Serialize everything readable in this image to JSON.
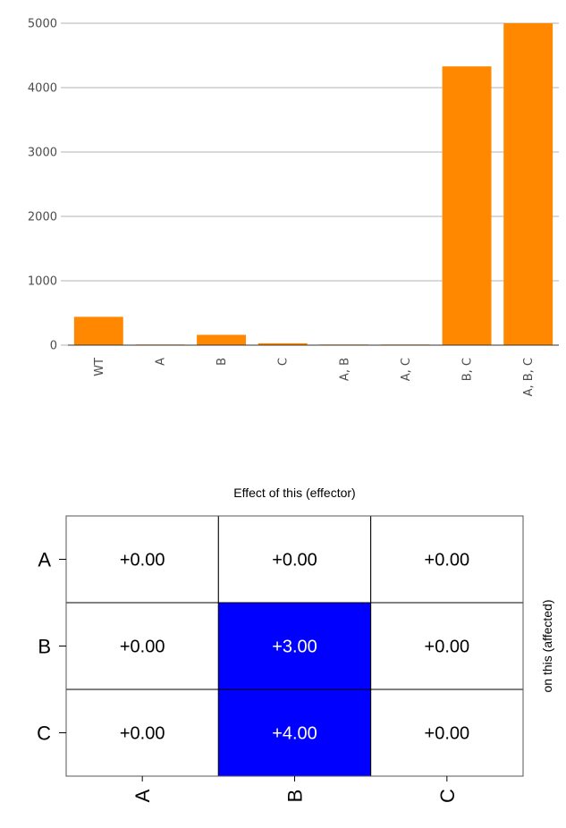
{
  "chart_data": [
    {
      "type": "bar",
      "categories": [
        "WT",
        "A",
        "B",
        "C",
        "A, B",
        "A, C",
        "B, C",
        "A, B, C"
      ],
      "values": [
        440,
        10,
        160,
        30,
        10,
        10,
        4330,
        5000
      ],
      "yticks": [
        0,
        1000,
        2000,
        3000,
        4000,
        5000
      ],
      "ylim": [
        0,
        5000
      ],
      "grid": true,
      "colors": {
        "bar": "#ff8800",
        "grid": "#b3b3b3",
        "axis": "#333333"
      }
    },
    {
      "type": "heatmap",
      "title": "Effect of this (effector)",
      "side_label": "on this (affected)",
      "rows": [
        "A",
        "B",
        "C"
      ],
      "columns": [
        "A",
        "B",
        "C"
      ],
      "values": [
        [
          "+0.00",
          "+0.00",
          "+0.00"
        ],
        [
          "+0.00",
          "+3.00",
          "+0.00"
        ],
        [
          "+0.00",
          "+4.00",
          "+0.00"
        ]
      ],
      "numeric_values": [
        [
          0,
          0,
          0
        ],
        [
          0,
          3,
          0
        ],
        [
          0,
          4,
          0
        ]
      ],
      "colors": {
        "positive": "#0000ff",
        "zero": "#ffffff"
      }
    }
  ]
}
